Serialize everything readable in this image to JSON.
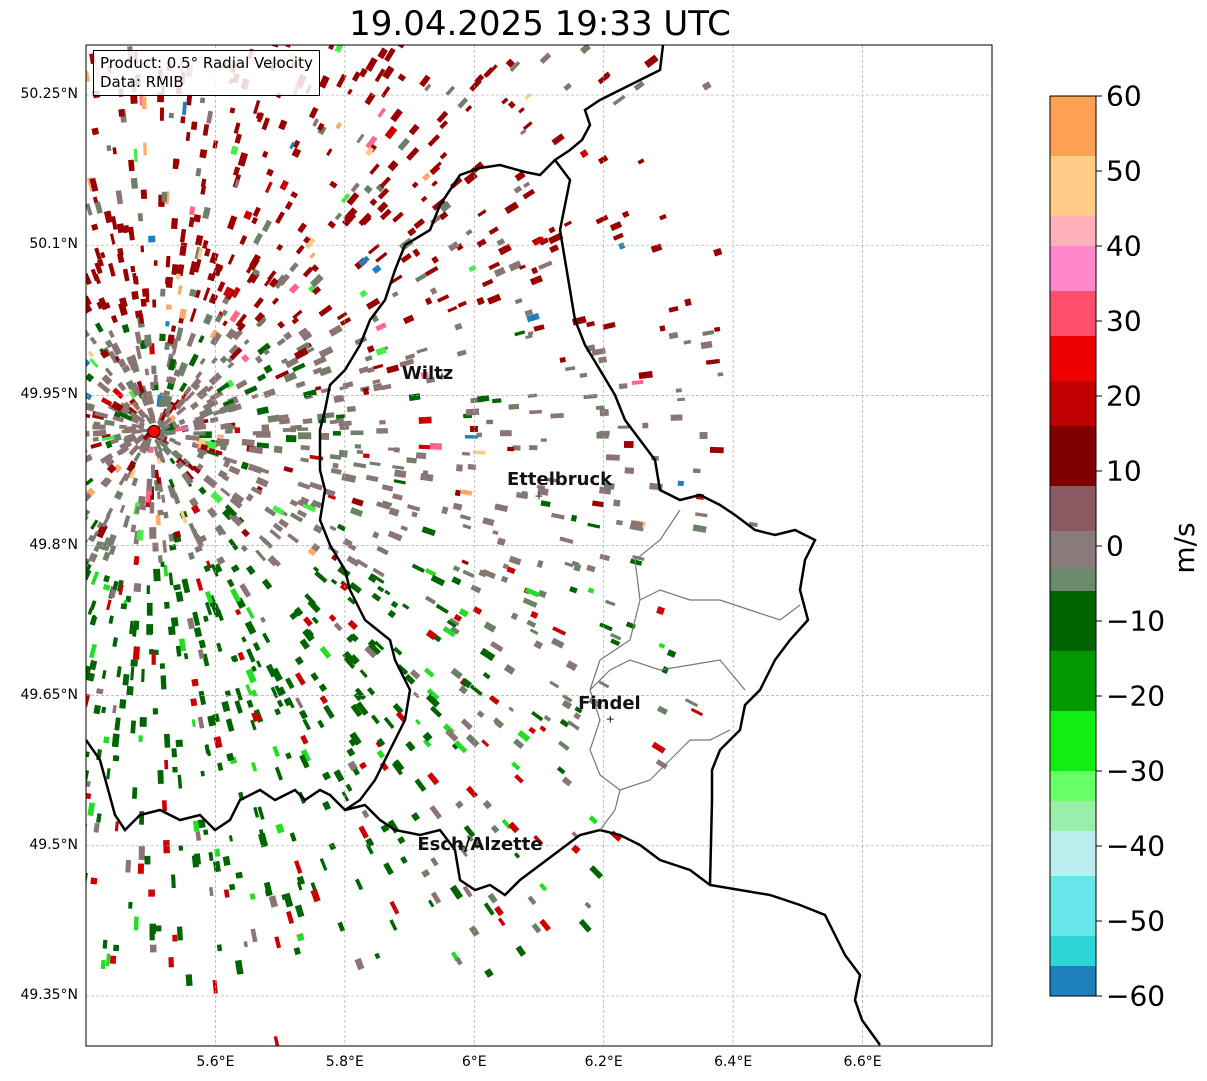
{
  "title": "19.04.2025 19:33 UTC",
  "info": {
    "product": "Product: 0.5° Radial Velocity",
    "data": "Data: RMIB"
  },
  "map": {
    "lon_range": [
      5.4,
      6.8
    ],
    "lat_range": [
      49.3,
      50.3
    ],
    "lat_ticks": [
      "50.25°N",
      "50.1°N",
      "49.95°N",
      "49.8°N",
      "49.65°N",
      "49.5°N",
      "49.35°N"
    ],
    "lon_ticks": [
      "5.6°E",
      "5.8°E",
      "6°E",
      "6.2°E",
      "6.4°E",
      "6.6°E"
    ],
    "lat_values": [
      50.25,
      50.1,
      49.95,
      49.8,
      49.65,
      49.5,
      49.35
    ],
    "lon_values": [
      5.6,
      5.8,
      6.0,
      6.2,
      6.4,
      6.6
    ],
    "radar_site": {
      "lon": 5.505,
      "lat": 49.914
    },
    "cities": [
      {
        "name": "Wiltz",
        "lon": 5.95,
        "lat": 49.97
      },
      {
        "name": "Ettelbruck",
        "lon": 6.1,
        "lat": 49.85
      },
      {
        "name": "Findel",
        "lon": 6.21,
        "lat": 49.627
      },
      {
        "name": "Esch/Alzette",
        "lon": 5.98,
        "lat": 49.5
      }
    ],
    "colors": {
      "strong_incoming_red": "#9a0000",
      "moderate_red": "#cc0000",
      "near_zero_grey": "#8a7474",
      "near_zero_greygreen": "#6e7f6a",
      "moderate_green": "#006400",
      "bright_green": "#22dd22"
    }
  },
  "colorbar": {
    "unit": "m/s",
    "ticks": [
      "60",
      "50",
      "40",
      "30",
      "20",
      "10",
      "0",
      "−10",
      "−20",
      "−30",
      "−40",
      "−50",
      "−60"
    ],
    "tick_values": [
      60,
      50,
      40,
      30,
      20,
      10,
      0,
      -10,
      -20,
      -30,
      -40,
      -50,
      -60
    ],
    "range": [
      -60,
      60
    ],
    "bands": [
      {
        "from": 52,
        "to": 60,
        "color": "#ffa052"
      },
      {
        "from": 44,
        "to": 52,
        "color": "#ffcc88"
      },
      {
        "from": 40,
        "to": 44,
        "color": "#ffb0b8"
      },
      {
        "from": 34,
        "to": 40,
        "color": "#ff88cc"
      },
      {
        "from": 28,
        "to": 34,
        "color": "#ff4f6a"
      },
      {
        "from": 22,
        "to": 28,
        "color": "#ee0000"
      },
      {
        "from": 16,
        "to": 22,
        "color": "#c00000"
      },
      {
        "from": 8,
        "to": 16,
        "color": "#800000"
      },
      {
        "from": 2,
        "to": 8,
        "color": "#8a5a62"
      },
      {
        "from": -3,
        "to": 2,
        "color": "#8a7a7a"
      },
      {
        "from": -6,
        "to": -3,
        "color": "#6a8a6a"
      },
      {
        "from": -14,
        "to": -6,
        "color": "#006400"
      },
      {
        "from": -22,
        "to": -14,
        "color": "#009a00"
      },
      {
        "from": -30,
        "to": -22,
        "color": "#11ee11"
      },
      {
        "from": -34,
        "to": -30,
        "color": "#66ff66"
      },
      {
        "from": -38,
        "to": -34,
        "color": "#99eeaa"
      },
      {
        "from": -44,
        "to": -38,
        "color": "#bbeeee"
      },
      {
        "from": -52,
        "to": -44,
        "color": "#66e6e6"
      },
      {
        "from": -56,
        "to": -52,
        "color": "#2ad6d6"
      },
      {
        "from": -60,
        "to": -56,
        "color": "#1f80c0"
      }
    ]
  }
}
